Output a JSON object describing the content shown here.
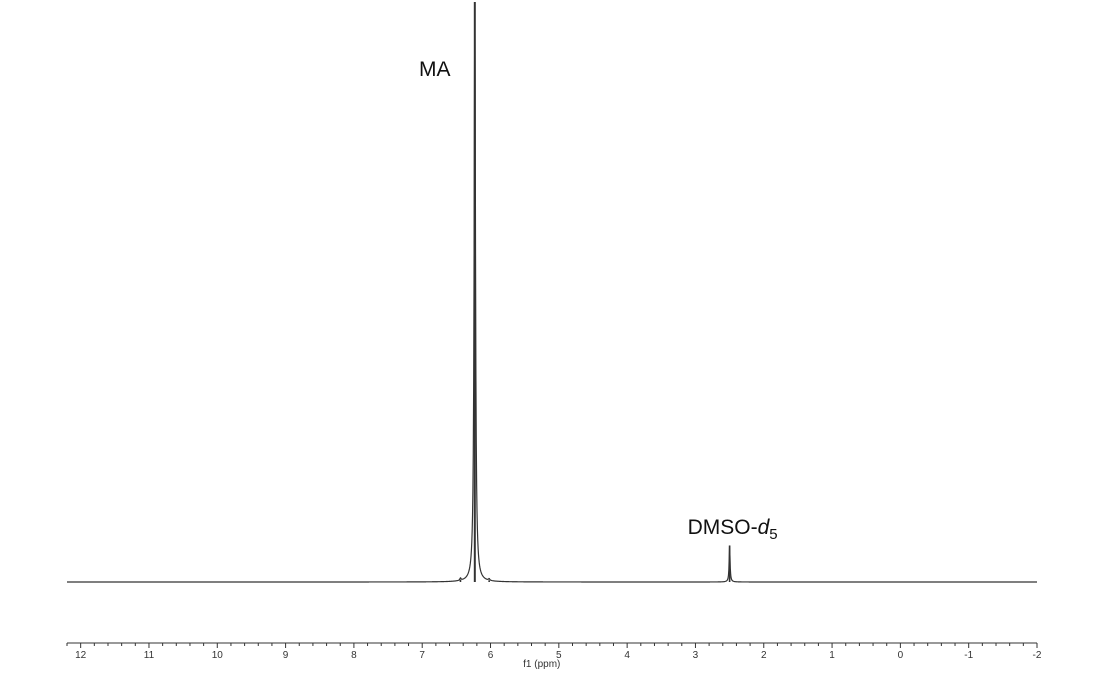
{
  "chart_data": {
    "type": "line",
    "title": "",
    "xlabel": "f1 (ppm)",
    "ylabel": "",
    "x_axis_reversed": true,
    "xlim": [
      12.2,
      -2.0
    ],
    "x_ticks": [
      12,
      11,
      10,
      9,
      8,
      7,
      6,
      5,
      4,
      3,
      2,
      1,
      0,
      -1,
      -2
    ],
    "x_tick_labels": [
      "12",
      "11",
      "10",
      "9",
      "8",
      "7",
      "6",
      "5",
      "4",
      "3",
      "2",
      "1",
      "0",
      "-1",
      "-2"
    ],
    "grid": false,
    "peaks": [
      {
        "ppm": 6.23,
        "relative_intensity": 1.0,
        "label": "MA"
      },
      {
        "ppm": 2.5,
        "relative_intensity": 0.063,
        "label_main": "DMSO-",
        "label_italic": "d",
        "label_sub": "5"
      },
      {
        "ppm": 6.44,
        "relative_intensity": 0.004
      },
      {
        "ppm": 6.02,
        "relative_intensity": 0.003
      }
    ],
    "color": "#333333"
  }
}
